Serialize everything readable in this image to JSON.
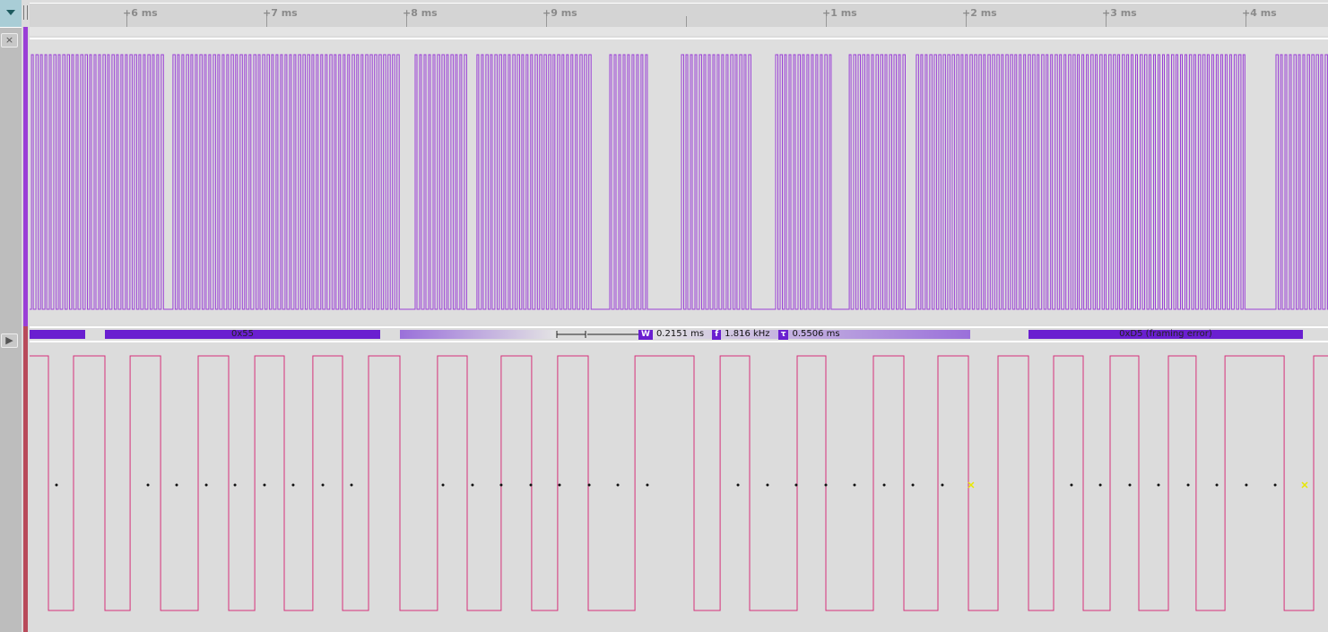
{
  "ruler": {
    "ticks": [
      {
        "label": "+6 ms",
        "t": 6
      },
      {
        "label": "+7 ms",
        "t": 7
      },
      {
        "label": "+8 ms",
        "t": 8
      },
      {
        "label": "+9 ms",
        "t": 9
      },
      {
        "label": "",
        "t": 10
      },
      {
        "label": "+1 ms",
        "t": 11
      },
      {
        "label": "+2 ms",
        "t": 12
      },
      {
        "label": "+3 ms",
        "t": 13
      },
      {
        "label": "+4 ms",
        "t": 14
      }
    ]
  },
  "channels": {
    "close_icon": "×",
    "expand_icon": "▶"
  },
  "top_channel": {
    "color": "#9a3fd6",
    "bursts_ms": [
      [
        5.321,
        6.25
      ],
      [
        6.333,
        6.891
      ],
      [
        6.91,
        7.962
      ],
      [
        8.064,
        8.417
      ],
      [
        8.506,
        9.308
      ],
      [
        9.455,
        9.731
      ],
      [
        9.968,
        10.468
      ],
      [
        10.641,
        11.026
      ],
      [
        11.167,
        11.571
      ],
      [
        11.647,
        13.987
      ],
      [
        14.218,
        14.6
      ]
    ],
    "pulse_period_ms": 0.032
  },
  "decoder": {
    "frames": [
      {
        "label": "",
        "start": 5.308,
        "end": 5.705
      },
      {
        "label": "0x55",
        "start": 5.846,
        "end": 7.814
      },
      {
        "label": "0xD5 (framing error)",
        "start": 12.449,
        "end": 14.41
      }
    ],
    "measurements": {
      "width_label": "W",
      "width": "0.2151 ms",
      "freq_label": "f",
      "freq": "1.816 kHz",
      "period_label": "τ",
      "period": "0.5506 ms"
    }
  },
  "bottom_channel": {
    "color": "#d6317a",
    "start_level": 1,
    "edges_ms": [
      5.442,
      5.622,
      5.846,
      6.026,
      6.244,
      6.513,
      6.731,
      6.917,
      7.128,
      7.333,
      7.545,
      7.731,
      7.955,
      8.224,
      8.436,
      8.679,
      8.897,
      9.083,
      9.301,
      9.635,
      10.058,
      10.244,
      10.455,
      10.795,
      11.0,
      11.34,
      11.558,
      11.801,
      12.019,
      12.231,
      12.449,
      12.628,
      12.84,
      13.032,
      13.237,
      13.449,
      13.647,
      13.853,
      14.276,
      14.487
    ],
    "sample_points_ms": [
      5.5,
      6.154,
      6.359,
      6.571,
      6.776,
      6.987,
      7.192,
      7.404,
      7.609,
      8.263,
      8.474,
      8.679,
      8.891,
      9.096,
      9.308,
      9.513,
      9.724,
      10.372,
      10.583,
      10.788,
      11.0,
      11.205,
      11.417,
      11.622,
      11.833,
      12.756,
      12.962,
      13.173,
      13.378,
      13.59,
      13.795,
      14.006,
      14.212
    ],
    "error_points_ms": [
      12.038,
      14.423
    ]
  }
}
